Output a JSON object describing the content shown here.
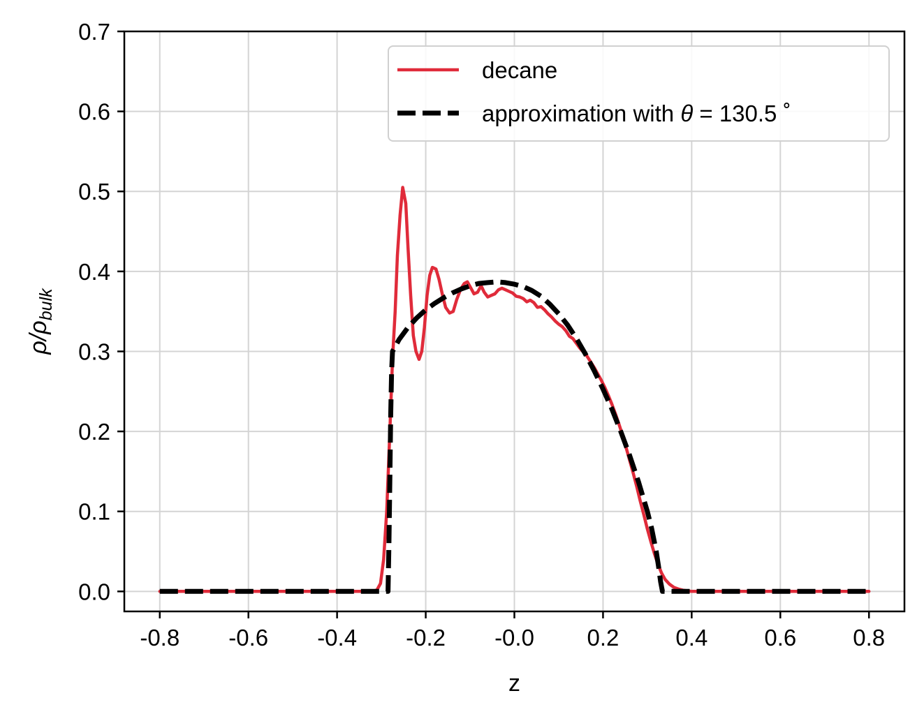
{
  "chart_data": {
    "type": "line",
    "title": "",
    "xlabel": "z",
    "ylabel": {
      "base": "ρ/ρ",
      "subscript": "bulk"
    },
    "xlim": [
      -0.88,
      0.88
    ],
    "ylim": [
      -0.025,
      0.7
    ],
    "xticks": [
      -0.8,
      -0.6,
      -0.4,
      -0.2,
      0.0,
      0.2,
      0.4,
      0.6,
      0.8
    ],
    "xtick_labels": [
      "-0.8",
      "-0.6",
      "-0.4",
      "-0.2",
      "-0.0",
      "0.2",
      "0.4",
      "0.6",
      "0.8"
    ],
    "yticks": [
      0.0,
      0.1,
      0.2,
      0.3,
      0.4,
      0.5,
      0.6,
      0.7
    ],
    "ytick_labels": [
      "0.0",
      "0.1",
      "0.2",
      "0.3",
      "0.4",
      "0.5",
      "0.6",
      "0.7"
    ],
    "grid": true,
    "legend_position": "upper right",
    "legend": [
      {
        "text_before": "decane",
        "symbol": "",
        "text_after": ""
      },
      {
        "text_before": "approximation with ",
        "symbol": "θ",
        "text_after": " = 130.5 ˚"
      }
    ],
    "series": [
      {
        "name": "decane",
        "color": "#e02b3a",
        "style": "solid",
        "points": [
          [
            -0.8,
            0.0
          ],
          [
            -0.7,
            0.0
          ],
          [
            -0.6,
            0.0
          ],
          [
            -0.5,
            0.0
          ],
          [
            -0.4,
            0.0
          ],
          [
            -0.32,
            0.0
          ],
          [
            -0.31,
            0.002
          ],
          [
            -0.302,
            0.01
          ],
          [
            -0.295,
            0.04
          ],
          [
            -0.288,
            0.1
          ],
          [
            -0.281,
            0.2
          ],
          [
            -0.275,
            0.29
          ],
          [
            -0.269,
            0.35
          ],
          [
            -0.264,
            0.42
          ],
          [
            -0.258,
            0.47
          ],
          [
            -0.252,
            0.505
          ],
          [
            -0.245,
            0.485
          ],
          [
            -0.24,
            0.43
          ],
          [
            -0.234,
            0.37
          ],
          [
            -0.228,
            0.32
          ],
          [
            -0.222,
            0.3
          ],
          [
            -0.215,
            0.29
          ],
          [
            -0.209,
            0.3
          ],
          [
            -0.203,
            0.33
          ],
          [
            -0.197,
            0.37
          ],
          [
            -0.191,
            0.395
          ],
          [
            -0.185,
            0.405
          ],
          [
            -0.177,
            0.403
          ],
          [
            -0.17,
            0.39
          ],
          [
            -0.162,
            0.37
          ],
          [
            -0.155,
            0.355
          ],
          [
            -0.146,
            0.348
          ],
          [
            -0.138,
            0.35
          ],
          [
            -0.13,
            0.365
          ],
          [
            -0.121,
            0.378
          ],
          [
            -0.113,
            0.385
          ],
          [
            -0.106,
            0.387
          ],
          [
            -0.099,
            0.38
          ],
          [
            -0.091,
            0.372
          ],
          [
            -0.083,
            0.374
          ],
          [
            -0.075,
            0.382
          ],
          [
            -0.068,
            0.374
          ],
          [
            -0.06,
            0.368
          ],
          [
            -0.052,
            0.37
          ],
          [
            -0.044,
            0.372
          ],
          [
            -0.036,
            0.377
          ],
          [
            -0.028,
            0.379
          ],
          [
            -0.02,
            0.377
          ],
          [
            -0.012,
            0.375
          ],
          [
            -0.004,
            0.373
          ],
          [
            0.004,
            0.369
          ],
          [
            0.012,
            0.368
          ],
          [
            0.02,
            0.366
          ],
          [
            0.028,
            0.362
          ],
          [
            0.036,
            0.364
          ],
          [
            0.044,
            0.361
          ],
          [
            0.052,
            0.355
          ],
          [
            0.06,
            0.356
          ],
          [
            0.068,
            0.352
          ],
          [
            0.076,
            0.347
          ],
          [
            0.084,
            0.343
          ],
          [
            0.092,
            0.338
          ],
          [
            0.1,
            0.334
          ],
          [
            0.108,
            0.331
          ],
          [
            0.116,
            0.326
          ],
          [
            0.124,
            0.319
          ],
          [
            0.132,
            0.316
          ],
          [
            0.14,
            0.31
          ],
          [
            0.148,
            0.304
          ],
          [
            0.156,
            0.299
          ],
          [
            0.164,
            0.294
          ],
          [
            0.172,
            0.287
          ],
          [
            0.18,
            0.28
          ],
          [
            0.188,
            0.272
          ],
          [
            0.196,
            0.264
          ],
          [
            0.204,
            0.255
          ],
          [
            0.212,
            0.245
          ],
          [
            0.22,
            0.234
          ],
          [
            0.228,
            0.222
          ],
          [
            0.236,
            0.209
          ],
          [
            0.244,
            0.195
          ],
          [
            0.252,
            0.18
          ],
          [
            0.26,
            0.164
          ],
          [
            0.268,
            0.148
          ],
          [
            0.276,
            0.131
          ],
          [
            0.284,
            0.113
          ],
          [
            0.292,
            0.096
          ],
          [
            0.3,
            0.078
          ],
          [
            0.308,
            0.062
          ],
          [
            0.316,
            0.047
          ],
          [
            0.324,
            0.034
          ],
          [
            0.332,
            0.023
          ],
          [
            0.34,
            0.015
          ],
          [
            0.35,
            0.009
          ],
          [
            0.36,
            0.005
          ],
          [
            0.37,
            0.003
          ],
          [
            0.38,
            0.0015
          ],
          [
            0.39,
            0.0007
          ],
          [
            0.4,
            0.0
          ],
          [
            0.5,
            0.0
          ],
          [
            0.6,
            0.0
          ],
          [
            0.7,
            0.0
          ],
          [
            0.8,
            0.0
          ]
        ]
      },
      {
        "name": "approximation with θ = 130.5 ˚",
        "color": "#000000",
        "style": "dashed",
        "points": [
          [
            -0.8,
            0.0
          ],
          [
            -0.6,
            0.0
          ],
          [
            -0.4,
            0.0
          ],
          [
            -0.285,
            0.0
          ],
          [
            -0.283,
            0.06
          ],
          [
            -0.281,
            0.14
          ],
          [
            -0.279,
            0.22
          ],
          [
            -0.277,
            0.275
          ],
          [
            -0.275,
            0.3
          ],
          [
            -0.26,
            0.315
          ],
          [
            -0.24,
            0.33
          ],
          [
            -0.22,
            0.342
          ],
          [
            -0.2,
            0.352
          ],
          [
            -0.18,
            0.36
          ],
          [
            -0.16,
            0.367
          ],
          [
            -0.14,
            0.373
          ],
          [
            -0.12,
            0.378
          ],
          [
            -0.1,
            0.382
          ],
          [
            -0.08,
            0.385
          ],
          [
            -0.06,
            0.386
          ],
          [
            -0.04,
            0.387
          ],
          [
            -0.02,
            0.386
          ],
          [
            0.0,
            0.384
          ],
          [
            0.02,
            0.381
          ],
          [
            0.04,
            0.376
          ],
          [
            0.06,
            0.369
          ],
          [
            0.08,
            0.359
          ],
          [
            0.1,
            0.347
          ],
          [
            0.12,
            0.333
          ],
          [
            0.14,
            0.316
          ],
          [
            0.16,
            0.297
          ],
          [
            0.18,
            0.276
          ],
          [
            0.2,
            0.253
          ],
          [
            0.22,
            0.228
          ],
          [
            0.24,
            0.2
          ],
          [
            0.26,
            0.17
          ],
          [
            0.28,
            0.137
          ],
          [
            0.3,
            0.1
          ],
          [
            0.31,
            0.078
          ],
          [
            0.32,
            0.05
          ],
          [
            0.325,
            0.032
          ],
          [
            0.33,
            0.012
          ],
          [
            0.334,
            0.0
          ],
          [
            0.4,
            0.0
          ],
          [
            0.6,
            0.0
          ],
          [
            0.8,
            0.0
          ]
        ]
      }
    ]
  }
}
